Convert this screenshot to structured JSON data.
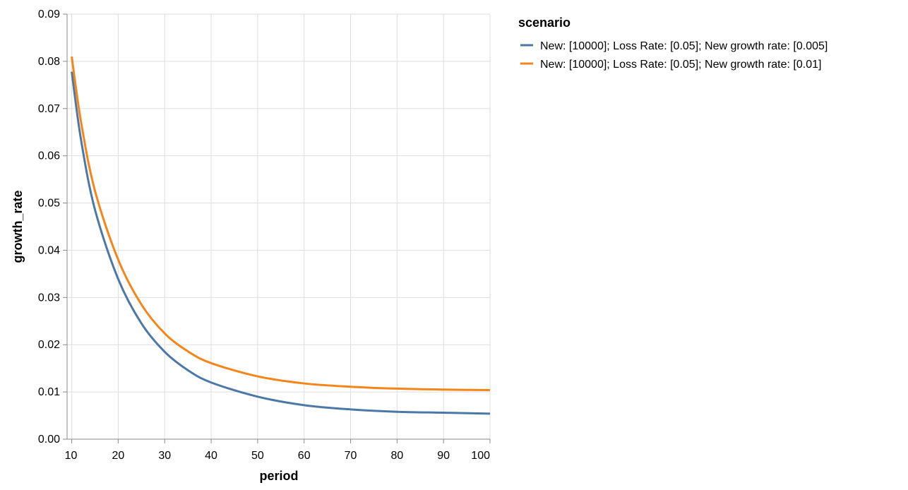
{
  "chart_data": {
    "type": "line",
    "title": "",
    "xlabel": "period",
    "ylabel": "growth_rate",
    "xlim": [
      9,
      100
    ],
    "ylim": [
      0,
      0.09
    ],
    "x_ticks": [
      "10",
      "20",
      "30",
      "40",
      "50",
      "60",
      "70",
      "80",
      "90",
      "100"
    ],
    "y_ticks": [
      "0.00",
      "0.01",
      "0.02",
      "0.03",
      "0.04",
      "0.05",
      "0.06",
      "0.07",
      "0.08",
      "0.09"
    ],
    "grid": true,
    "legend": {
      "title": "scenario",
      "placement": "right"
    },
    "series": [
      {
        "name": "New: [10000]; Loss Rate: [0.05]; New growth rate: [0.005]",
        "color": "#4c78a8",
        "x": [
          10,
          12,
          15,
          20,
          25,
          30,
          35,
          40,
          50,
          60,
          70,
          80,
          90,
          100
        ],
        "y": [
          0.0778,
          0.0634,
          0.0486,
          0.0339,
          0.0245,
          0.0185,
          0.0146,
          0.012,
          0.009,
          0.0072,
          0.0063,
          0.0058,
          0.0056,
          0.0054
        ]
      },
      {
        "name": "New: [10000]; Loss Rate: [0.05]; New growth rate: [0.01]",
        "color": "#f58518",
        "x": [
          10,
          12,
          15,
          20,
          25,
          30,
          35,
          40,
          50,
          60,
          70,
          80,
          90,
          100
        ],
        "y": [
          0.081,
          0.0672,
          0.0526,
          0.038,
          0.0285,
          0.0224,
          0.0186,
          0.0161,
          0.0133,
          0.0118,
          0.0111,
          0.0107,
          0.0105,
          0.0104
        ]
      }
    ]
  }
}
